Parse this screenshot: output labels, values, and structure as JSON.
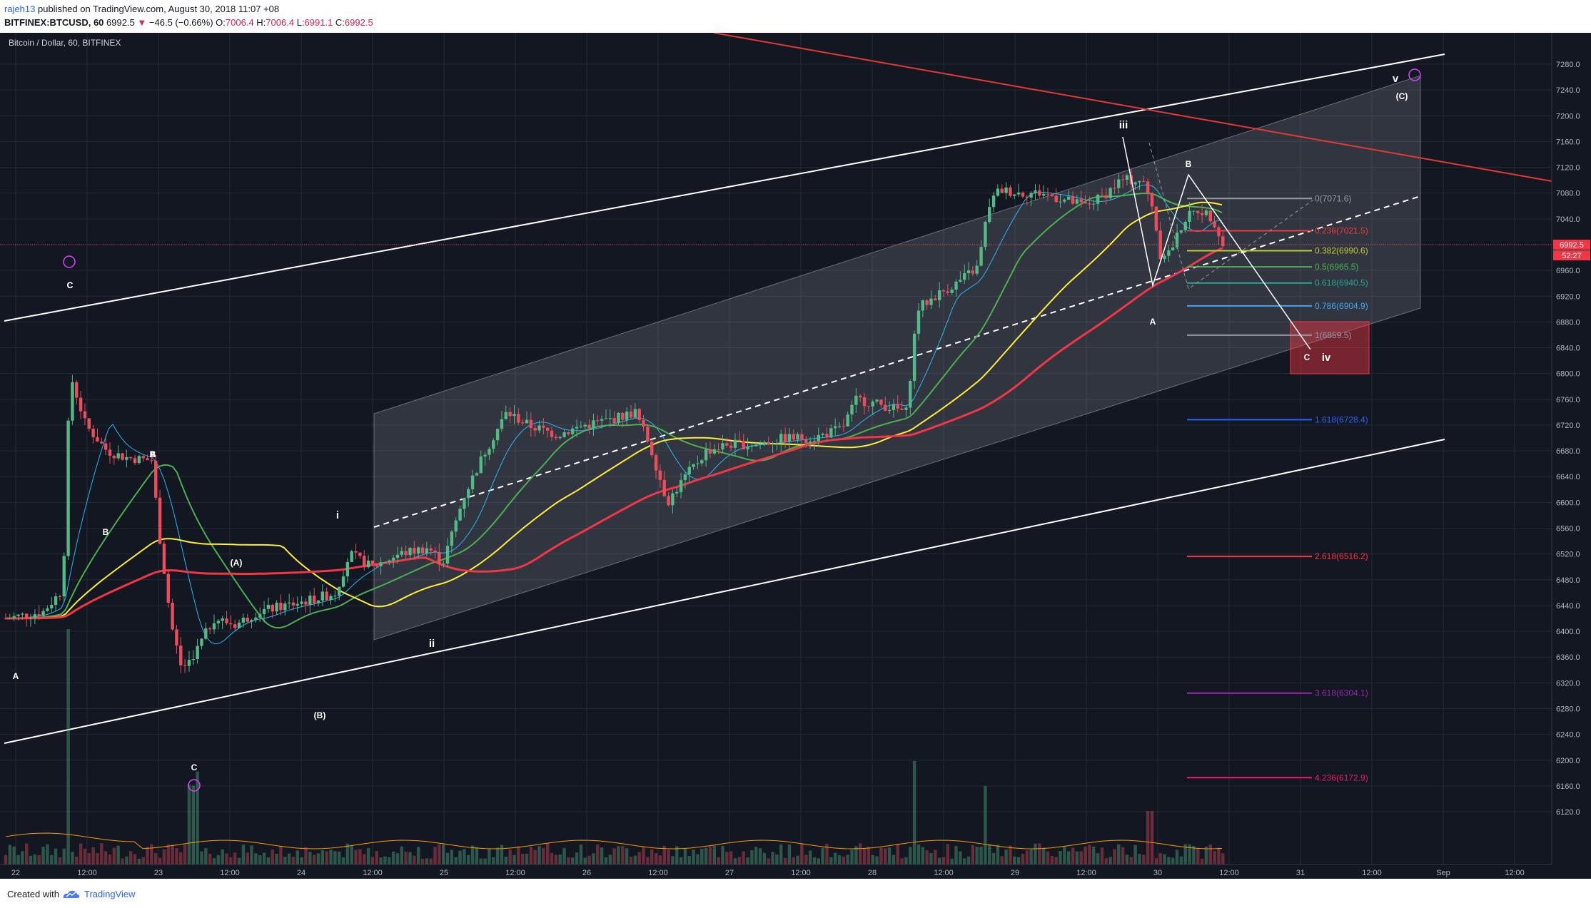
{
  "header": {
    "username": "rajeh13",
    "published_text": " published on TradingView.com, August 30, 2018 11:07 +08",
    "symbol": "BITFINEX:BTCUSD, 60",
    "last": "6992.5",
    "change": "−46.5 (−0.66%)",
    "open_label": "O:",
    "open": "7006.4",
    "high_label": "H:",
    "high": "7006.4",
    "low_label": "L:",
    "low": "6991.1",
    "close_label": "C:",
    "close": "6992.5"
  },
  "chart": {
    "title": "Bitcoin / Dollar, 60, BITFINEX",
    "last_price_tag": "6992.5",
    "countdown_tag": "52:27",
    "colors": {
      "background": "#131722",
      "up": "#53b987",
      "down": "#eb4d5c",
      "ma_fast": "#29b6f6",
      "ma_mid": "#4caf50",
      "ma_yellow": "#ffeb3b",
      "ma_red": "#f23645"
    }
  },
  "chart_data": {
    "type": "candlestick",
    "title": "Bitcoin / Dollar, 60, BITFINEX",
    "y_ticks": [
      "7280.0",
      "7240.0",
      "7200.0",
      "7160.0",
      "7120.0",
      "7080.0",
      "7040.0",
      "7000.0",
      "6960.0",
      "6920.0",
      "6880.0",
      "6840.0",
      "6800.0",
      "6760.0",
      "6720.0",
      "6680.0",
      "6640.0",
      "6600.0",
      "6560.0",
      "6520.0",
      "6480.0",
      "6440.0",
      "6400.0",
      "6360.0",
      "6320.0",
      "6280.0",
      "6240.0",
      "6200.0",
      "6160.0",
      "6120.0"
    ],
    "x_ticks": [
      "22",
      "12:00",
      "23",
      "12:00",
      "24",
      "12:00",
      "25",
      "12:00",
      "26",
      "12:00",
      "27",
      "12:00",
      "28",
      "12:00",
      "29",
      "12:00",
      "30",
      "12:00",
      "31",
      "12:00",
      "Sep",
      "12:00"
    ],
    "ylim": [
      6110,
      7295
    ],
    "key_prices": {
      "last": 6992.5,
      "open": 7006.4,
      "high": 7006.4,
      "low": 6991.1,
      "close": 6992.5
    },
    "fib_levels": [
      {
        "label": "0(7071.6)",
        "value": 7071.6,
        "color": "#9598a1"
      },
      {
        "label": "0.236(7021.5)",
        "value": 7021.5,
        "color": "#f23645"
      },
      {
        "label": "0.382(6990.6)",
        "value": 6990.6,
        "color": "#c0ca33"
      },
      {
        "label": "0.5(6965.5)",
        "value": 6965.5,
        "color": "#4caf50"
      },
      {
        "label": "0.618(6940.5)",
        "value": 6940.5,
        "color": "#26a69a"
      },
      {
        "label": "0.786(6904.9)",
        "value": 6904.9,
        "color": "#42a5f5"
      },
      {
        "label": "1(6859.5)",
        "value": 6859.5,
        "color": "#9598a1"
      },
      {
        "label": "1.618(6728.4)",
        "value": 6728.4,
        "color": "#2962ff"
      },
      {
        "label": "2.618(6516.2)",
        "value": 6516.2,
        "color": "#f23645"
      },
      {
        "label": "3.618(6304.1)",
        "value": 6304.1,
        "color": "#9c27b0"
      },
      {
        "label": "4.236(6172.9)",
        "value": 6172.9,
        "color": "#e91e63"
      }
    ],
    "wave_labels": [
      "A",
      "C",
      "B",
      "A",
      "(A)",
      "B",
      "C",
      "B",
      "i",
      "ii",
      "(B)",
      "iii",
      "B",
      "A",
      "C",
      "iv",
      "v",
      "C",
      "(C)"
    ]
  },
  "footer": {
    "created_with": "Created with",
    "brand": "TradingView"
  }
}
